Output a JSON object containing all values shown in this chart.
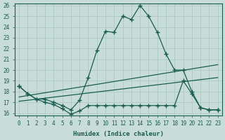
{
  "xlabel": "Humidex (Indice chaleur)",
  "xlim": [
    -0.5,
    23.5
  ],
  "ylim": [
    15.8,
    26.2
  ],
  "yticks": [
    16,
    17,
    18,
    19,
    20,
    21,
    22,
    23,
    24,
    25,
    26
  ],
  "xticks": [
    0,
    1,
    2,
    3,
    4,
    5,
    6,
    7,
    8,
    9,
    10,
    11,
    12,
    13,
    14,
    15,
    16,
    17,
    18,
    19,
    20,
    21,
    22,
    23
  ],
  "bg_color": "#c8ddd8",
  "line_color": "#1a5c50",
  "grid_color": "#b0ccc8",
  "line1_x": [
    0,
    1,
    2,
    3,
    4,
    5,
    6,
    7,
    8,
    9,
    10,
    11,
    12,
    13,
    14,
    15,
    16,
    17,
    18,
    19,
    20,
    21,
    22,
    23
  ],
  "line1_y": [
    18.5,
    17.8,
    17.3,
    17.3,
    17.0,
    16.7,
    16.3,
    17.2,
    19.3,
    21.8,
    23.6,
    23.5,
    25.0,
    24.7,
    26.0,
    25.0,
    23.5,
    21.5,
    20.0,
    20.0,
    18.0,
    16.5,
    16.3,
    16.3
  ],
  "line2_x": [
    0,
    1,
    2,
    3,
    4,
    5,
    6,
    7,
    8,
    9,
    10,
    11,
    12,
    13,
    14,
    15,
    16,
    17,
    18,
    19,
    20,
    21,
    22,
    23
  ],
  "line2_y": [
    18.5,
    17.8,
    17.3,
    17.0,
    16.8,
    16.4,
    15.9,
    16.2,
    16.7,
    16.7,
    16.7,
    16.7,
    16.7,
    16.7,
    16.7,
    16.7,
    16.7,
    16.7,
    16.7,
    19.0,
    17.8,
    16.5,
    16.3,
    16.3
  ],
  "line3_x": [
    0,
    23
  ],
  "line3_y": [
    17.5,
    20.5
  ],
  "line4_x": [
    0,
    23
  ],
  "line4_y": [
    17.1,
    19.3
  ]
}
